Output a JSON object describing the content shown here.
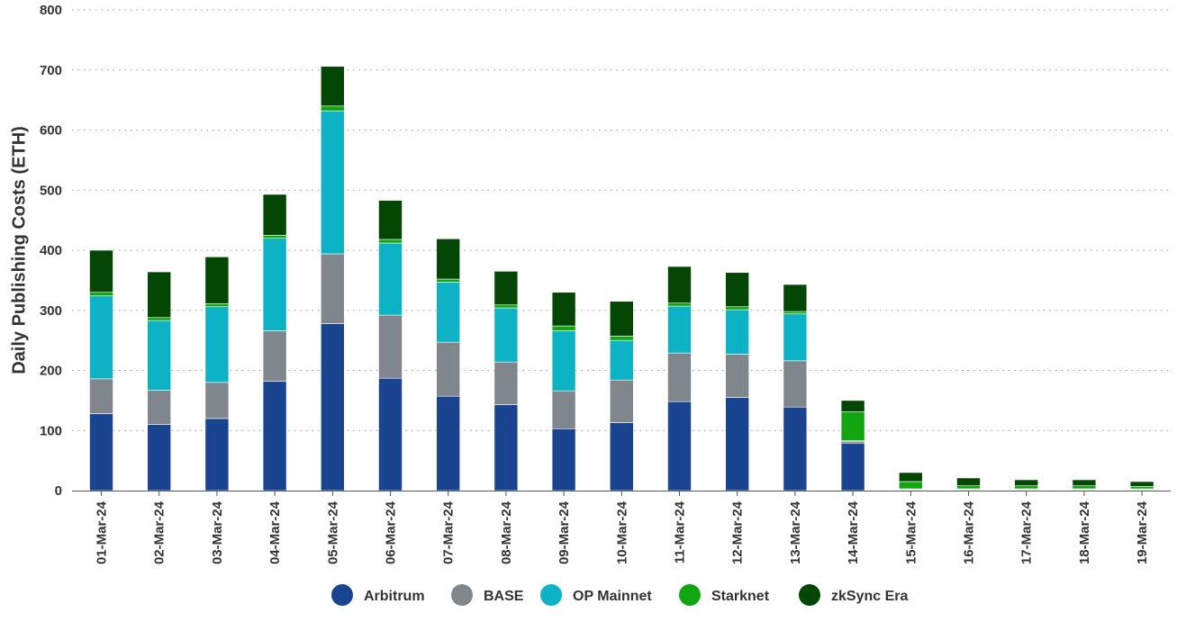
{
  "chart_data": {
    "type": "bar",
    "stacked": true,
    "title": "",
    "xlabel": "",
    "ylabel": "Daily Publishing Costs (ETH)",
    "ylim": [
      0,
      800
    ],
    "yticks": [
      0,
      100,
      200,
      300,
      400,
      500,
      600,
      700,
      800
    ],
    "grid": true,
    "legend_position": "bottom",
    "categories": [
      "01-Mar-24",
      "02-Mar-24",
      "03-Mar-24",
      "04-Mar-24",
      "05-Mar-24",
      "06-Mar-24",
      "07-Mar-24",
      "08-Mar-24",
      "09-Mar-24",
      "10-Mar-24",
      "11-Mar-24",
      "12-Mar-24",
      "13-Mar-24",
      "14-Mar-24",
      "15-Mar-24",
      "16-Mar-24",
      "17-Mar-24",
      "18-Mar-24",
      "19-Mar-24"
    ],
    "series": [
      {
        "name": "Arbitrum",
        "color": "#1a4490",
        "values": [
          128,
          110,
          120,
          182,
          278,
          187,
          157,
          143,
          103,
          113,
          148,
          155,
          139,
          79,
          1,
          1,
          1,
          1,
          1
        ]
      },
      {
        "name": "BASE",
        "color": "#7f868c",
        "values": [
          58,
          57,
          60,
          84,
          116,
          105,
          90,
          71,
          63,
          71,
          81,
          72,
          77,
          3,
          1,
          1,
          1,
          1,
          1
        ]
      },
      {
        "name": "OP Mainnet",
        "color": "#0db3c4",
        "values": [
          138,
          116,
          126,
          154,
          238,
          120,
          100,
          90,
          100,
          66,
          78,
          74,
          78,
          1,
          1,
          1,
          1,
          1,
          1
        ]
      },
      {
        "name": "Starknet",
        "color": "#11a60f",
        "values": [
          6,
          5,
          5,
          5,
          8,
          6,
          5,
          5,
          8,
          7,
          5,
          5,
          4,
          48,
          12,
          5,
          5,
          5,
          4
        ]
      },
      {
        "name": "zkSync Era",
        "color": "#044704",
        "values": [
          70,
          76,
          78,
          68,
          66,
          65,
          67,
          56,
          56,
          58,
          61,
          57,
          45,
          19,
          15,
          13,
          10,
          10,
          8
        ]
      }
    ]
  }
}
